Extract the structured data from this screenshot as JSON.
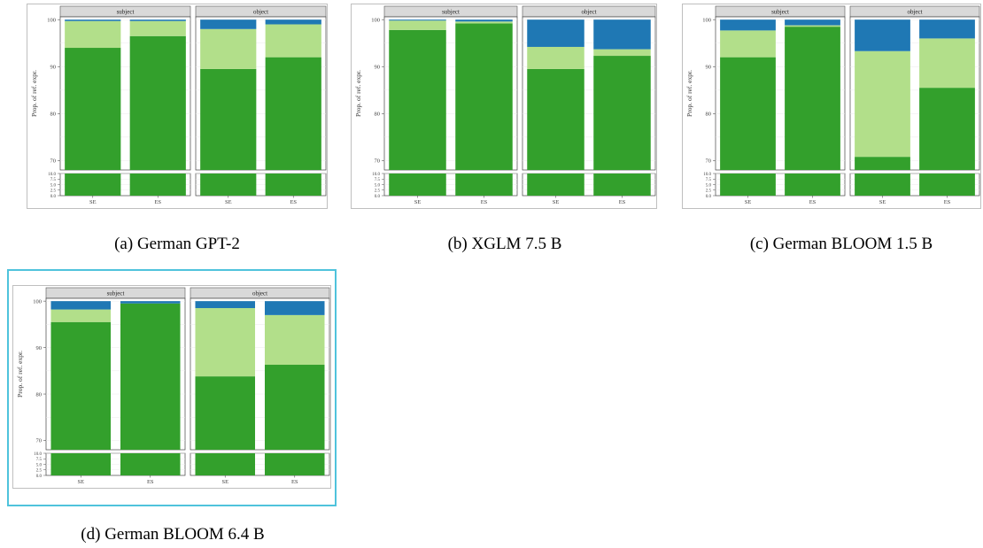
{
  "captions": [
    "(a) German GPT-2",
    "(b) XGLM 7.5 B",
    "(c) German BLOOM 1.5 B",
    "(d) German BLOOM 6.4 B"
  ],
  "colors": {
    "dark_green": "#33a02c",
    "light_green": "#b2df8a",
    "blue": "#1f78b4",
    "strip_fill": "#d9d9d9",
    "highlight": "#4fc3dc"
  },
  "chart_data": [
    {
      "type": "bar",
      "stacked": true,
      "caption": "(a) German GPT-2",
      "ylabel": "Prop. of ref. expr.",
      "facets": [
        "subject",
        "object"
      ],
      "categories": [
        "SE",
        "ES"
      ],
      "y_ticks_upper": [
        "100",
        "90",
        "80",
        "70"
      ],
      "y_ticks_lower": [
        "10.0",
        "7.5",
        "5.0",
        "2.5",
        "0.0"
      ],
      "ylim_upper": [
        68,
        100.6
      ],
      "ylim_lower": [
        0,
        10
      ],
      "series": [
        {
          "color": "dark_green",
          "values": {
            "subject": [
              94.0,
              96.5
            ],
            "object": [
              89.5,
              92.0
            ]
          }
        },
        {
          "color": "light_green",
          "values": {
            "subject": [
              5.7,
              3.2
            ],
            "object": [
              8.5,
              7.0
            ]
          }
        },
        {
          "color": "blue",
          "values": {
            "subject": [
              0.3,
              0.3
            ],
            "object": [
              2.0,
              1.0
            ]
          }
        }
      ]
    },
    {
      "type": "bar",
      "stacked": true,
      "caption": "(b) XGLM 7.5 B",
      "ylabel": "Prop. of ref. expr.",
      "facets": [
        "subject",
        "object"
      ],
      "categories": [
        "SE",
        "ES"
      ],
      "y_ticks_upper": [
        "100",
        "90",
        "80",
        "70"
      ],
      "y_ticks_lower": [
        "10.0",
        "7.5",
        "5.0",
        "2.5",
        "0.0"
      ],
      "ylim_upper": [
        68,
        100.6
      ],
      "ylim_lower": [
        0,
        10
      ],
      "series": [
        {
          "color": "dark_green",
          "values": {
            "subject": [
              97.8,
              99.2
            ],
            "object": [
              89.5,
              92.3
            ]
          }
        },
        {
          "color": "light_green",
          "values": {
            "subject": [
              2.0,
              0.4
            ],
            "object": [
              4.7,
              1.4
            ]
          }
        },
        {
          "color": "blue",
          "values": {
            "subject": [
              0.2,
              0.4
            ],
            "object": [
              5.8,
              6.3
            ]
          }
        }
      ]
    },
    {
      "type": "bar",
      "stacked": true,
      "caption": "(c) German BLOOM 1.5 B",
      "ylabel": "Prop. of ref. expr.",
      "facets": [
        "subject",
        "object"
      ],
      "categories": [
        "SE",
        "ES"
      ],
      "y_ticks_upper": [
        "100",
        "90",
        "80",
        "70"
      ],
      "y_ticks_lower": [
        "10.0",
        "7.5",
        "5.0",
        "2.5",
        "0.0"
      ],
      "ylim_upper": [
        68,
        100.6
      ],
      "ylim_lower": [
        0,
        10
      ],
      "series": [
        {
          "color": "dark_green",
          "values": {
            "subject": [
              92.0,
              98.5
            ],
            "object": [
              70.8,
              85.5
            ]
          }
        },
        {
          "color": "light_green",
          "values": {
            "subject": [
              5.7,
              0.3
            ],
            "object": [
              22.5,
              10.5
            ]
          }
        },
        {
          "color": "blue",
          "values": {
            "subject": [
              2.3,
              1.2
            ],
            "object": [
              6.7,
              4.0
            ]
          }
        }
      ]
    },
    {
      "type": "bar",
      "stacked": true,
      "caption": "(d) German BLOOM 6.4 B",
      "ylabel": "Prop. of ref. expr.",
      "facets": [
        "subject",
        "object"
      ],
      "categories": [
        "SE",
        "ES"
      ],
      "y_ticks_upper": [
        "100",
        "90",
        "80",
        "70"
      ],
      "y_ticks_lower": [
        "10.0",
        "7.5",
        "5.0",
        "2.5",
        "0.0"
      ],
      "ylim_upper": [
        68,
        100.6
      ],
      "ylim_lower": [
        0,
        10
      ],
      "series": [
        {
          "color": "dark_green",
          "values": {
            "subject": [
              95.5,
              99.5
            ],
            "object": [
              83.8,
              86.3
            ]
          }
        },
        {
          "color": "light_green",
          "values": {
            "subject": [
              2.7,
              0.0
            ],
            "object": [
              14.7,
              10.7
            ]
          }
        },
        {
          "color": "blue",
          "values": {
            "subject": [
              1.8,
              0.5
            ],
            "object": [
              1.5,
              3.0
            ]
          }
        }
      ]
    }
  ]
}
